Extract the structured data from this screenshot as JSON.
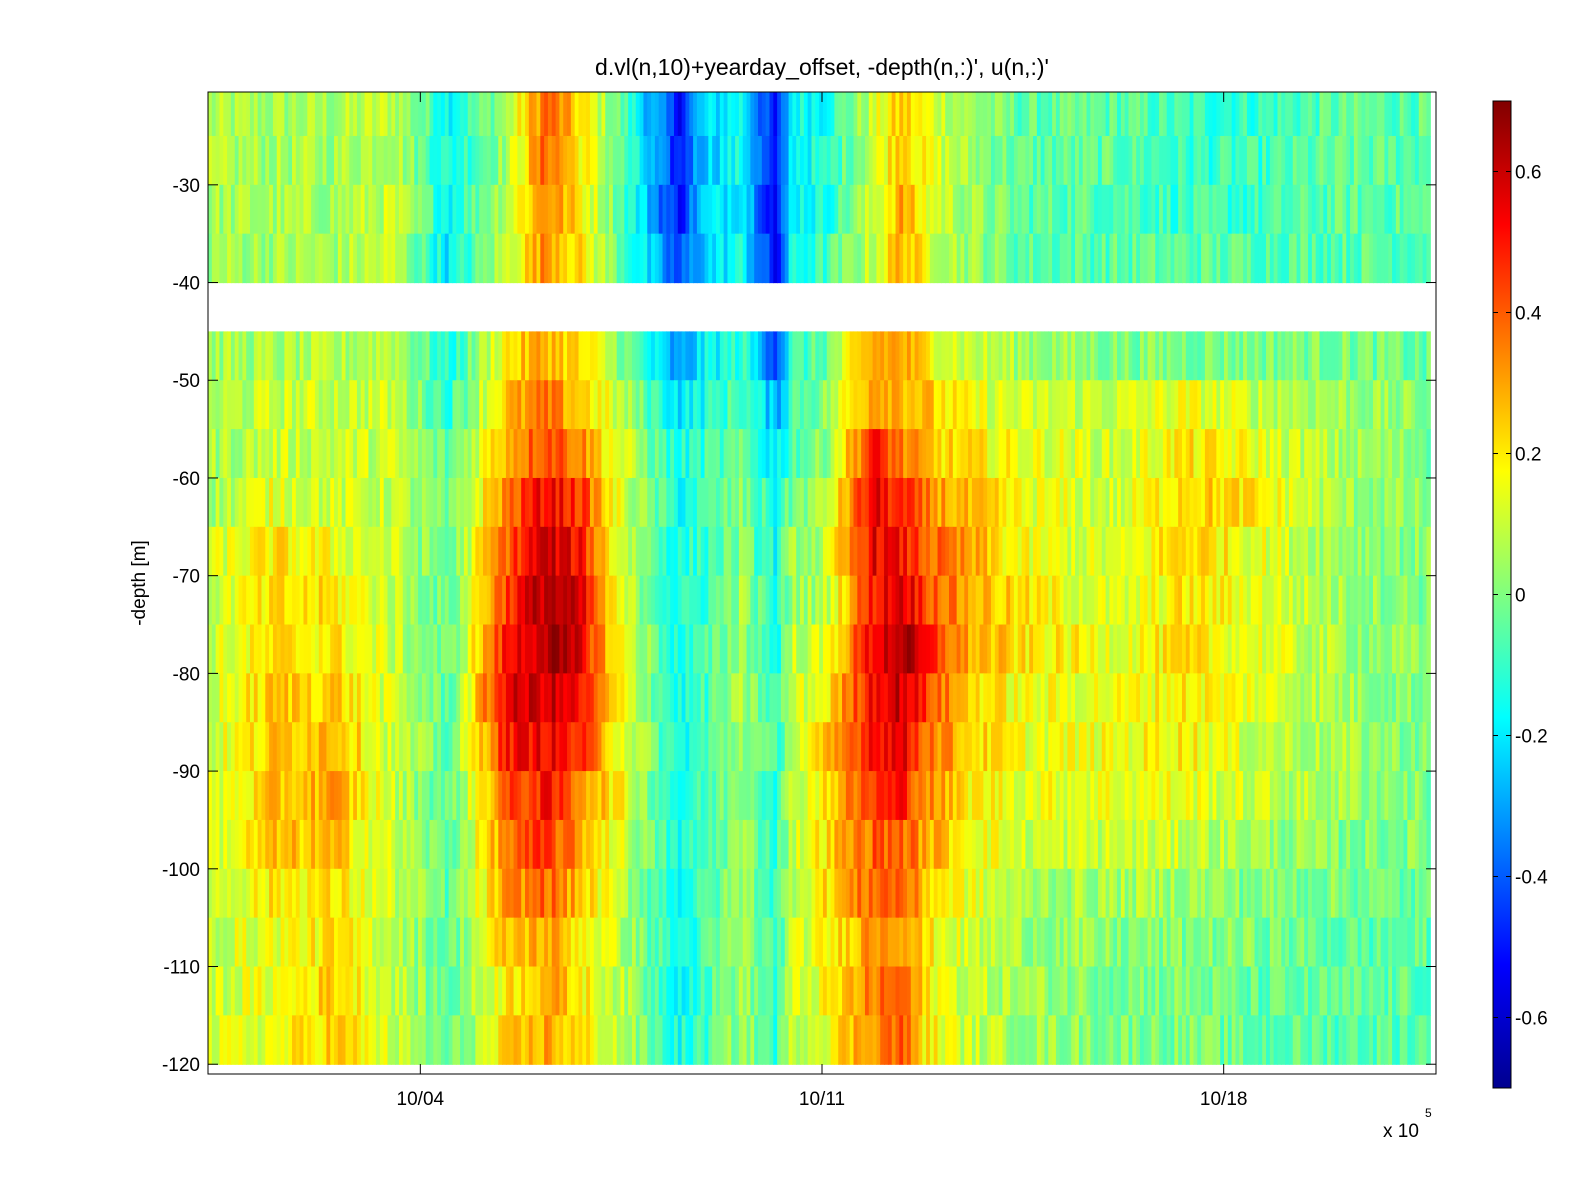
{
  "chart_data": {
    "type": "heatmap",
    "title": "d.vl(n,10)+yearday_offset, -depth(n,:)', u(n,:)'",
    "ylabel": "-depth [m]",
    "xlabel": "",
    "x_exponent_label": "x 10",
    "x_exponent_power": "5",
    "x_ticks": [
      {
        "label": "10/04",
        "day": 4
      },
      {
        "label": "10/11",
        "day": 11
      },
      {
        "label": "10/18",
        "day": 18
      }
    ],
    "xlim_days": [
      0.3,
      21.7
    ],
    "y_ticks": [
      -30,
      -40,
      -50,
      -60,
      -70,
      -80,
      -90,
      -100,
      -110,
      -120
    ],
    "ylim": [
      -121,
      -20.5
    ],
    "colorbar": {
      "range": [
        -0.7,
        0.7
      ],
      "ticks": [
        -0.6,
        -0.4,
        -0.2,
        0,
        0.2,
        0.4,
        0.6
      ],
      "colormap": "jet"
    },
    "data_range_days": [
      0.3,
      21.6
    ],
    "gap_depth_m": [
      -41,
      -46
    ],
    "depth_bins_m": [
      -22.5,
      -27.5,
      -32.5,
      -37.5,
      -47.5,
      -52.5,
      -57.5,
      -62.5,
      -67.5,
      -72.5,
      -77.5,
      -82.5,
      -87.5,
      -92.5,
      -97.5,
      -102.5,
      -107.5,
      -112.5,
      -117.5
    ],
    "anchor_days": [
      0.3,
      1.5,
      2.5,
      3.5,
      4.5,
      5.5,
      6.2,
      6.8,
      7.4,
      8.5,
      8.9,
      9.6,
      10.2,
      10.5,
      11.0,
      11.9,
      12.4,
      12.8,
      13.5,
      14.5,
      16.2,
      17.3,
      18.5,
      20.0,
      21.6
    ],
    "anchor_velocity_rows": [
      [
        0.05,
        0.05,
        0.05,
        0.1,
        -0.15,
        0.05,
        0.4,
        0.2,
        0.0,
        -0.5,
        -0.25,
        -0.15,
        -0.55,
        -0.15,
        -0.15,
        0.1,
        0.25,
        0.15,
        0.05,
        -0.05,
        -0.05,
        -0.1,
        -0.1,
        -0.05,
        -0.05
      ],
      [
        0.05,
        0.05,
        0.05,
        0.1,
        -0.15,
        0.05,
        0.4,
        0.2,
        0.0,
        -0.5,
        -0.25,
        -0.15,
        -0.55,
        -0.15,
        -0.15,
        0.1,
        0.3,
        0.15,
        0.05,
        -0.05,
        -0.05,
        -0.1,
        -0.1,
        -0.05,
        -0.05
      ],
      [
        0.05,
        0.05,
        0.05,
        0.1,
        -0.15,
        0.1,
        0.35,
        0.2,
        0.0,
        -0.5,
        -0.25,
        -0.15,
        -0.55,
        -0.15,
        -0.15,
        0.1,
        0.3,
        0.15,
        0.05,
        -0.05,
        -0.05,
        -0.1,
        -0.1,
        -0.05,
        -0.05
      ],
      [
        0.05,
        0.05,
        0.05,
        0.1,
        -0.2,
        0.1,
        0.35,
        0.2,
        0.0,
        -0.45,
        -0.25,
        -0.15,
        -0.55,
        -0.15,
        -0.1,
        0.1,
        0.3,
        0.15,
        0.05,
        -0.05,
        -0.05,
        -0.05,
        -0.05,
        -0.05,
        -0.05
      ],
      [
        0.05,
        0.05,
        0.05,
        0.1,
        -0.15,
        0.2,
        0.3,
        0.2,
        0.05,
        -0.35,
        -0.2,
        -0.1,
        -0.4,
        -0.1,
        -0.05,
        0.3,
        0.3,
        0.2,
        0.1,
        0.05,
        0.0,
        0.0,
        0.0,
        0.0,
        -0.05
      ],
      [
        0.05,
        0.1,
        0.1,
        0.1,
        -0.1,
        0.25,
        0.35,
        0.25,
        0.1,
        -0.2,
        -0.15,
        -0.05,
        -0.3,
        -0.05,
        0.0,
        0.35,
        0.3,
        0.25,
        0.15,
        0.1,
        0.1,
        0.15,
        0.1,
        0.05,
        0.0
      ],
      [
        0.05,
        0.1,
        0.1,
        0.1,
        -0.05,
        0.3,
        0.45,
        0.35,
        0.15,
        -0.15,
        -0.1,
        -0.05,
        -0.2,
        -0.05,
        0.0,
        0.5,
        0.35,
        0.25,
        0.2,
        0.15,
        0.1,
        0.2,
        0.15,
        0.05,
        0.0
      ],
      [
        0.05,
        0.15,
        0.1,
        0.1,
        -0.05,
        0.35,
        0.55,
        0.45,
        0.15,
        -0.15,
        -0.1,
        0.0,
        -0.15,
        0.0,
        0.05,
        0.55,
        0.45,
        0.35,
        0.25,
        0.15,
        0.1,
        0.25,
        0.2,
        0.05,
        0.0
      ],
      [
        0.1,
        0.2,
        0.15,
        0.1,
        -0.05,
        0.4,
        0.6,
        0.5,
        0.15,
        -0.15,
        -0.1,
        0.0,
        -0.15,
        0.05,
        0.05,
        0.55,
        0.5,
        0.4,
        0.3,
        0.15,
        0.1,
        0.25,
        0.15,
        0.05,
        0.0
      ],
      [
        0.1,
        0.2,
        0.2,
        0.1,
        -0.05,
        0.45,
        0.65,
        0.55,
        0.15,
        -0.15,
        -0.1,
        0.05,
        -0.15,
        0.05,
        0.05,
        0.5,
        0.6,
        0.45,
        0.3,
        0.2,
        0.1,
        0.2,
        0.15,
        0.05,
        0.0
      ],
      [
        0.1,
        0.2,
        0.2,
        0.1,
        -0.05,
        0.5,
        0.65,
        0.55,
        0.2,
        -0.15,
        -0.1,
        0.05,
        -0.15,
        0.1,
        0.1,
        0.55,
        0.65,
        0.5,
        0.3,
        0.2,
        0.15,
        0.2,
        0.15,
        0.05,
        0.0
      ],
      [
        0.1,
        0.25,
        0.25,
        0.1,
        -0.05,
        0.55,
        0.6,
        0.5,
        0.2,
        -0.15,
        -0.1,
        0.05,
        -0.1,
        0.1,
        0.15,
        0.55,
        0.6,
        0.45,
        0.25,
        0.15,
        0.15,
        0.2,
        0.15,
        0.05,
        0.0
      ],
      [
        0.1,
        0.25,
        0.3,
        0.1,
        -0.05,
        0.5,
        0.55,
        0.45,
        0.2,
        -0.15,
        -0.1,
        0.05,
        -0.1,
        0.1,
        0.2,
        0.55,
        0.55,
        0.4,
        0.25,
        0.15,
        0.15,
        0.2,
        0.1,
        0.05,
        0.0
      ],
      [
        0.1,
        0.25,
        0.3,
        0.1,
        -0.05,
        0.4,
        0.5,
        0.35,
        0.2,
        -0.15,
        -0.1,
        0.05,
        -0.1,
        0.1,
        0.2,
        0.45,
        0.5,
        0.35,
        0.2,
        0.15,
        0.15,
        0.15,
        0.1,
        0.05,
        0.0
      ],
      [
        0.1,
        0.25,
        0.25,
        0.1,
        -0.05,
        0.35,
        0.45,
        0.3,
        0.15,
        -0.15,
        -0.1,
        0.05,
        -0.1,
        0.1,
        0.2,
        0.4,
        0.4,
        0.3,
        0.2,
        0.1,
        0.1,
        0.1,
        0.05,
        0.0,
        0.0
      ],
      [
        0.1,
        0.2,
        0.2,
        0.1,
        -0.05,
        0.3,
        0.4,
        0.25,
        0.1,
        -0.15,
        -0.1,
        0.05,
        -0.1,
        0.1,
        0.2,
        0.4,
        0.4,
        0.25,
        0.15,
        0.05,
        0.05,
        0.05,
        0.0,
        0.0,
        -0.05
      ],
      [
        0.1,
        0.15,
        0.2,
        0.1,
        -0.05,
        0.25,
        0.3,
        0.2,
        0.1,
        -0.15,
        -0.1,
        0.05,
        -0.1,
        0.1,
        0.15,
        0.35,
        0.35,
        0.2,
        0.1,
        0.05,
        0.0,
        0.0,
        0.0,
        -0.05,
        -0.05
      ],
      [
        0.1,
        0.15,
        0.25,
        0.1,
        -0.05,
        0.2,
        0.3,
        0.2,
        0.1,
        -0.15,
        -0.1,
        0.05,
        -0.1,
        0.1,
        0.15,
        0.35,
        0.4,
        0.2,
        0.1,
        0.05,
        0.0,
        0.0,
        -0.05,
        -0.05,
        -0.05
      ],
      [
        0.1,
        0.15,
        0.25,
        0.1,
        -0.05,
        0.2,
        0.3,
        0.2,
        0.1,
        -0.15,
        -0.1,
        0.05,
        -0.1,
        0.1,
        0.15,
        0.35,
        0.4,
        0.2,
        0.1,
        0.05,
        0.0,
        0.0,
        -0.05,
        -0.05,
        -0.05
      ]
    ]
  }
}
